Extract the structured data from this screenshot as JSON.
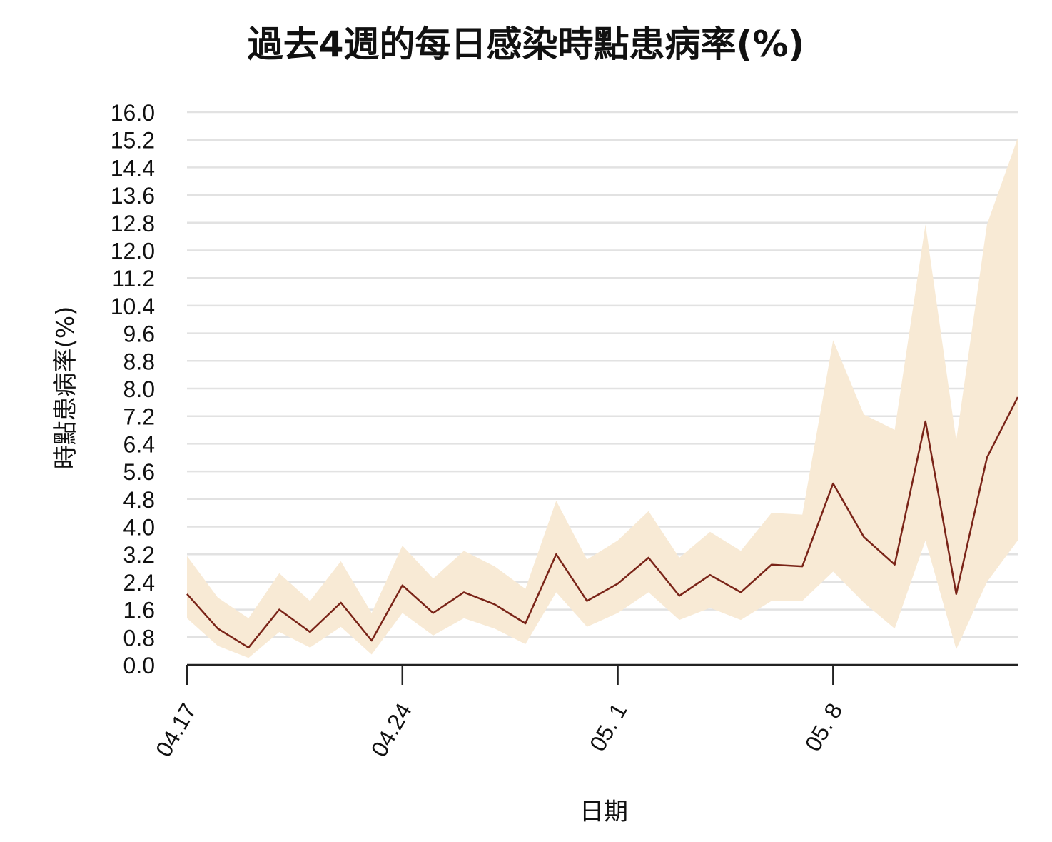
{
  "chart_data": {
    "type": "line",
    "title": "過去4週的每日感染時點患病率(%)",
    "xlabel": "日期",
    "ylabel": "時點患病率(%)",
    "ylim": [
      0,
      16
    ],
    "y_ticks": [
      "0.0",
      "0.8",
      "1.6",
      "2.4",
      "3.2",
      "4.0",
      "4.8",
      "5.6",
      "6.4",
      "7.2",
      "8.0",
      "8.8",
      "9.6",
      "10.4",
      "11.2",
      "12.0",
      "12.8",
      "13.6",
      "14.4",
      "15.2",
      "16.0"
    ],
    "grid": true,
    "x_tick_labels": [
      {
        "label": "04.17",
        "index": 0
      },
      {
        "label": "04.24",
        "index": 7
      },
      {
        "label": "05. 1",
        "index": 14
      },
      {
        "label": "05. 8",
        "index": 21
      }
    ],
    "x": [
      "04.17",
      "04.18",
      "04.19",
      "04.20",
      "04.21",
      "04.22",
      "04.23",
      "04.24",
      "04.25",
      "04.26",
      "04.27",
      "04.28",
      "04.29",
      "04.30",
      "05.01",
      "05.02",
      "05.03",
      "05.04",
      "05.05",
      "05.06",
      "05.07",
      "05.08",
      "05.09",
      "05.10",
      "05.11",
      "05.12",
      "05.13",
      "05.14"
    ],
    "series": [
      {
        "values": [
          2.05,
          1.05,
          0.5,
          1.6,
          0.95,
          1.8,
          0.7,
          2.3,
          1.5,
          2.1,
          1.75,
          1.2,
          3.2,
          1.85,
          2.35,
          3.1,
          2.0,
          2.6,
          2.1,
          2.9,
          2.85,
          5.25,
          3.7,
          2.9,
          7.05,
          2.05,
          6.0,
          7.75
        ],
        "lower": [
          1.35,
          0.55,
          0.2,
          0.95,
          0.5,
          1.1,
          0.3,
          1.5,
          0.85,
          1.35,
          1.05,
          0.6,
          2.1,
          1.1,
          1.5,
          2.1,
          1.3,
          1.65,
          1.3,
          1.85,
          1.85,
          2.7,
          1.8,
          1.05,
          3.6,
          0.45,
          2.4,
          3.6
        ],
        "upper": [
          3.15,
          1.95,
          1.35,
          2.65,
          1.85,
          3.0,
          1.5,
          3.45,
          2.5,
          3.3,
          2.85,
          2.2,
          4.75,
          3.05,
          3.6,
          4.45,
          3.1,
          3.85,
          3.3,
          4.4,
          4.35,
          9.4,
          7.25,
          6.8,
          12.75,
          6.5,
          12.75,
          15.25
        ]
      }
    ],
    "colors": {
      "line": "#7a2418",
      "band": "#f8ead5",
      "grid": "#e2e2e2",
      "axis": "#222222"
    }
  }
}
